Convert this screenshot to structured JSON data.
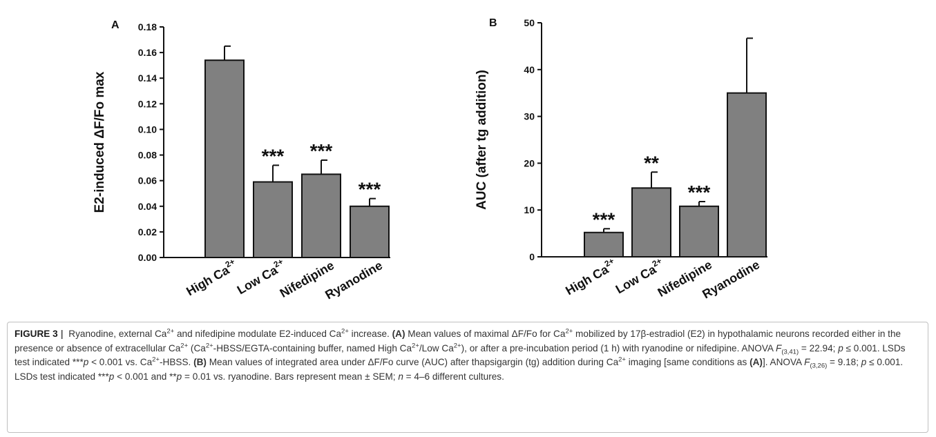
{
  "chart_data": [
    {
      "panel": "A",
      "type": "bar",
      "ylabel": "E2-induced  ΔF/Fo  max",
      "categories": [
        "High Ca2+",
        "Low Ca2+",
        "Nifedipine",
        "Ryanodine"
      ],
      "category_labels": [
        {
          "base": "High Ca",
          "sup": "2+"
        },
        {
          "base": "Low Ca",
          "sup": "2+"
        },
        {
          "base": "Nifedipine",
          "sup": ""
        },
        {
          "base": "Ryanodine",
          "sup": ""
        }
      ],
      "values": [
        0.154,
        0.059,
        0.065,
        0.04
      ],
      "errors": [
        0.011,
        0.013,
        0.011,
        0.006
      ],
      "significance": [
        "",
        "***",
        "***",
        "***"
      ],
      "ylim": [
        0,
        0.18
      ],
      "yticks": [
        "0.00",
        "0.02",
        "0.04",
        "0.06",
        "0.08",
        "0.10",
        "0.12",
        "0.14",
        "0.16",
        "0.18"
      ],
      "bar_color": "#808080",
      "grid": false
    },
    {
      "panel": "B",
      "type": "bar",
      "ylabel": "AUC (after tg addition)",
      "categories": [
        "High Ca2+",
        "Low Ca2+",
        "Nifedipine",
        "Ryanodine"
      ],
      "category_labels": [
        {
          "base": "High Ca",
          "sup": "2+"
        },
        {
          "base": "Low Ca",
          "sup": "2+"
        },
        {
          "base": "Nifedipine",
          "sup": ""
        },
        {
          "base": "Ryanodine",
          "sup": ""
        }
      ],
      "values": [
        5.2,
        14.7,
        10.8,
        35.0
      ],
      "errors": [
        0.8,
        3.4,
        1.0,
        11.7
      ],
      "significance": [
        "***",
        "**",
        "***",
        ""
      ],
      "ylim": [
        0,
        50
      ],
      "yticks": [
        "0",
        "10",
        "20",
        "30",
        "40",
        "50"
      ],
      "bar_color": "#808080",
      "grid": false
    }
  ],
  "caption": {
    "figure_label": "FIGURE 3",
    "separator": "|",
    "segments": [
      {
        "t": " Ryanodine, external Ca"
      },
      {
        "t": "2+",
        "s": "sup"
      },
      {
        "t": " and nifedipine modulate E2-induced Ca"
      },
      {
        "t": "2+",
        "s": "sup"
      },
      {
        "t": " increase. "
      },
      {
        "t": "(A)",
        "s": "b"
      },
      {
        "t": " Mean values of maximal ΔF/Fo for Ca"
      },
      {
        "t": "2+",
        "s": "sup"
      },
      {
        "t": " mobilized by 17β-estradiol (E2) in hypothalamic neurons recorded either in the presence or absence of extracellular Ca"
      },
      {
        "t": "2+",
        "s": "sup"
      },
      {
        "t": " (Ca"
      },
      {
        "t": "2+",
        "s": "sup"
      },
      {
        "t": "-HBSS/EGTA-containing buffer, named High Ca"
      },
      {
        "t": "2+",
        "s": "sup"
      },
      {
        "t": "/Low Ca"
      },
      {
        "t": "2+",
        "s": "sup"
      },
      {
        "t": "), or after a pre-incubation period (1 h) with ryanodine or nifedipine. ANOVA "
      },
      {
        "t": "F",
        "s": "i"
      },
      {
        "t": "(3,41)",
        "s": "sub"
      },
      {
        "t": " = 22.94; "
      },
      {
        "t": "p",
        "s": "i"
      },
      {
        "t": " ≤ 0.001. LSDs test indicated ***"
      },
      {
        "t": "p",
        "s": "i"
      },
      {
        "t": " < 0.001 vs. Ca"
      },
      {
        "t": "2+",
        "s": "sup"
      },
      {
        "t": "-HBSS. "
      },
      {
        "t": "(B)",
        "s": "b"
      },
      {
        "t": " Mean values of integrated area under ΔF/Fo curve (AUC) after thapsigargin (tg) addition during Ca"
      },
      {
        "t": "2+",
        "s": "sup"
      },
      {
        "t": " imaging [same conditions as "
      },
      {
        "t": "(A)",
        "s": "b"
      },
      {
        "t": "]. ANOVA "
      },
      {
        "t": "F",
        "s": "i"
      },
      {
        "t": "(3,26)",
        "s": "sub"
      },
      {
        "t": " = 9.18; "
      },
      {
        "t": "p",
        "s": "i"
      },
      {
        "t": " ≤ 0.001. LSDs test indicated ***"
      },
      {
        "t": "p",
        "s": "i"
      },
      {
        "t": " < 0.001 and **"
      },
      {
        "t": "p",
        "s": "i"
      },
      {
        "t": " = 0.01 vs. ryanodine. Bars represent mean ± SEM; "
      },
      {
        "t": "n",
        "s": "i"
      },
      {
        "t": " = 4–6 different cultures."
      }
    ]
  }
}
